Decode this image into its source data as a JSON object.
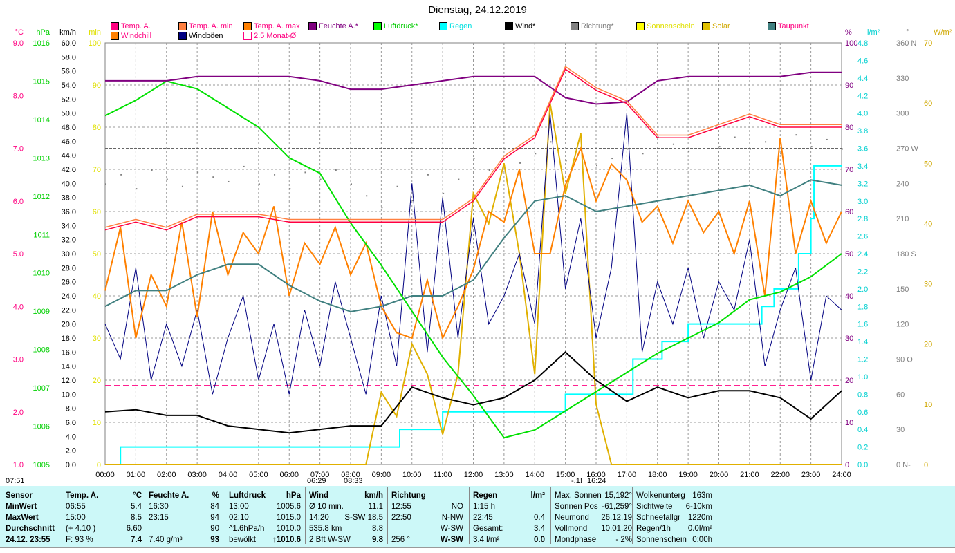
{
  "title": "Dienstag, 24.12.2019",
  "legend": [
    {
      "label": "Temp. A.",
      "color": "#ff0080",
      "text": "#ff0080"
    },
    {
      "label": "Temp. A. min",
      "color": "#ff8040",
      "text": "#ff0080"
    },
    {
      "label": "Temp. A. max",
      "color": "#ff8000",
      "text": "#ff0080"
    },
    {
      "label": "Feuchte A.*",
      "color": "#800080",
      "text": "#800080"
    },
    {
      "label": "Luftdruck*",
      "color": "#00ff00",
      "text": "#00cc00"
    },
    {
      "label": "Regen",
      "color": "#00ffff",
      "text": "#00e0e0"
    },
    {
      "label": "Wind*",
      "color": "#000000",
      "text": "#000000"
    },
    {
      "label": "Richtung*",
      "color": "#808080",
      "text": "#808080"
    },
    {
      "label": "Sonnenschein",
      "color": "#ffff00",
      "text": "#e0e000"
    },
    {
      "label": "Solar",
      "color": "#e0c000",
      "text": "#d0a800"
    },
    {
      "label": "Taupunkt",
      "color": "#408080",
      "text": "#ff0080"
    },
    {
      "label": "Windchill",
      "color": "#ff8000",
      "text": "#ff0080"
    },
    {
      "label": "Windböen",
      "color": "#000080",
      "text": "#000000"
    },
    {
      "label": "2.5 Monat-Ø",
      "color": "#ff0080",
      "text": "#ff0080"
    }
  ],
  "chart_data": {
    "type": "line",
    "title": "Dienstag, 24.12.2019",
    "x_ticks": [
      "00:00",
      "01:00",
      "02:00",
      "03:00",
      "04:00",
      "05:00",
      "06:00",
      "07:00",
      "08:00",
      "09:00",
      "10:00",
      "11:00",
      "12:00",
      "13:00",
      "14:00",
      "15:00",
      "16:00",
      "17:00",
      "18:00",
      "19:00",
      "20:00",
      "21:00",
      "22:00",
      "23:00",
      "24:00"
    ],
    "axes": {
      "temp": {
        "unit": "°C",
        "range": [
          1.0,
          9.0
        ],
        "ticks": [
          "9.0",
          "8.0",
          "7.0",
          "6.0",
          "5.0",
          "4.0",
          "3.0",
          "2.0",
          "1.0"
        ]
      },
      "pressure": {
        "unit": "hPa",
        "range": [
          1005,
          1016
        ],
        "ticks": [
          "1016",
          "1015",
          "1014",
          "1013",
          "1012",
          "1011",
          "1010",
          "1009",
          "1008",
          "1007",
          "1006",
          "1005"
        ]
      },
      "wind": {
        "unit": "km/h",
        "range": [
          0,
          60
        ],
        "ticks": [
          "60.0",
          "58.0",
          "56.0",
          "54.0",
          "52.0",
          "50.0",
          "48.0",
          "46.0",
          "44.0",
          "42.0",
          "40.0",
          "38.0",
          "36.0",
          "34.0",
          "32.0",
          "30.0",
          "28.0",
          "26.0",
          "24.0",
          "22.0",
          "20.0",
          "18.0",
          "16.0",
          "14.0",
          "12.0",
          "10.0",
          "8.0",
          "6.0",
          "4.0",
          "2.0",
          "0.0"
        ]
      },
      "sunmin": {
        "unit": "min",
        "range": [
          0,
          100
        ],
        "ticks": [
          "100",
          "90",
          "80",
          "70",
          "60",
          "50",
          "40",
          "30",
          "20",
          "10",
          "0"
        ]
      },
      "humidity": {
        "unit": "%",
        "range": [
          0,
          100
        ],
        "ticks": [
          "100",
          "90",
          "80",
          "70",
          "60",
          "50",
          "40",
          "30",
          "20",
          "10",
          "0"
        ]
      },
      "rain": {
        "unit": "l/m²",
        "range": [
          0,
          4.8
        ],
        "ticks": [
          "4.8",
          "4.6",
          "4.4",
          "4.2",
          "4.0",
          "3.8",
          "3.6",
          "3.4",
          "3.2",
          "3.0",
          "2.8",
          "2.6",
          "2.4",
          "2.2",
          "2.0",
          "1.8",
          "1.6",
          "1.4",
          "1.2",
          "1.0",
          "0.8",
          "0.6",
          "0.4",
          "0.2",
          "0.0"
        ]
      },
      "direction": {
        "unit": "°",
        "range": [
          0,
          360
        ],
        "ticks": [
          "360 N",
          "330",
          "300",
          "270 W",
          "240",
          "210",
          "180 S",
          "150",
          "120",
          "90 O",
          "60",
          "30",
          "0 N-"
        ]
      },
      "solar": {
        "unit": "W/m²",
        "range": [
          0,
          70
        ],
        "ticks": [
          "70",
          "60",
          "50",
          "40",
          "30",
          "20",
          "10",
          "0"
        ]
      }
    },
    "series_hourly": {
      "temp": [
        5.45,
        5.6,
        5.45,
        5.7,
        5.7,
        5.7,
        5.6,
        5.6,
        5.6,
        5.6,
        5.6,
        5.6,
        6.0,
        6.8,
        7.2,
        8.5,
        8.1,
        7.85,
        7.2,
        7.2,
        7.4,
        7.6,
        7.4,
        7.4,
        7.4
      ],
      "humidity": [
        91,
        91,
        91,
        92,
        92,
        92,
        92,
        91,
        89,
        89,
        90,
        91,
        92,
        92,
        92,
        87,
        85.5,
        86,
        91,
        92,
        92,
        92,
        92,
        93,
        93
      ],
      "pressure": [
        1014.1,
        1014.5,
        1015.0,
        1014.8,
        1014.3,
        1013.8,
        1013.0,
        1012.6,
        1011.3,
        1010.2,
        1009.0,
        1007.8,
        1006.8,
        1005.7,
        1005.9,
        1006.4,
        1006.9,
        1007.4,
        1007.9,
        1008.3,
        1008.7,
        1009.3,
        1009.5,
        1009.9,
        1010.5
      ],
      "dewpoint": [
        4.0,
        4.3,
        4.3,
        4.6,
        4.8,
        4.8,
        4.4,
        4.1,
        3.9,
        4.0,
        4.2,
        4.2,
        4.5,
        5.3,
        6.0,
        6.1,
        5.8,
        5.9,
        6.0,
        6.1,
        6.2,
        6.3,
        6.1,
        6.4,
        6.3
      ],
      "wind": [
        7.5,
        7.8,
        7.0,
        7.0,
        5.5,
        5.0,
        4.5,
        5.0,
        5.5,
        5.5,
        11,
        9.5,
        8.5,
        9.5,
        12,
        16,
        12,
        9,
        11,
        9.5,
        10.5,
        10.5,
        9.5,
        6.5,
        10.5
      ]
    },
    "series_halfhourly": {
      "gusts": [
        20,
        15,
        28,
        12,
        20,
        14,
        22,
        10,
        18,
        24,
        12,
        20,
        10,
        22,
        14,
        26,
        18,
        10,
        24,
        14,
        40,
        16,
        38,
        18,
        35,
        20,
        24,
        30,
        20,
        50,
        25,
        35,
        18,
        28,
        50,
        16,
        26,
        20,
        28,
        18,
        26,
        22,
        32,
        14,
        22,
        28,
        12,
        24,
        22
      ],
      "windchill": [
        4.3,
        5.5,
        3.4,
        4.6,
        4.0,
        5.6,
        3.8,
        5.8,
        4.6,
        5.4,
        5.0,
        5.9,
        4.2,
        5.2,
        4.8,
        5.5,
        4.6,
        5.2,
        4.0,
        3.5,
        3.4,
        4.5,
        3.4,
        4.0,
        4.7,
        5.8,
        5.6,
        6.6,
        5.0,
        5.0,
        6.3,
        7.0,
        6.0,
        6.7,
        6.4,
        5.6,
        5.9,
        5.2,
        6.0,
        5.4,
        5.8,
        5.0,
        6.0,
        4.2,
        7.2,
        5.0,
        6.0,
        5.2,
        5.8
      ],
      "solar": [
        0,
        0,
        0,
        0,
        0,
        0,
        0,
        0,
        0,
        0,
        0,
        0,
        0,
        0,
        0,
        0,
        0,
        0,
        12,
        8,
        20,
        15,
        5,
        15,
        45,
        40,
        50,
        35,
        15,
        60,
        45,
        55,
        10,
        0,
        0,
        0,
        0,
        0,
        0,
        0,
        0,
        0,
        0,
        0,
        0,
        0,
        0,
        0,
        0
      ],
      "direction": [
        240,
        248,
        236,
        252,
        244,
        238,
        250,
        246,
        242,
        255,
        240,
        248,
        236,
        250,
        244,
        252,
        240,
        230,
        220,
        238,
        226,
        248,
        232,
        244,
        262,
        252,
        270,
        258,
        266,
        276,
        260,
        272,
        256,
        262,
        270,
        266,
        280,
        274,
        268,
        284,
        272,
        280,
        270,
        276,
        266,
        282,
        272,
        278,
        270
      ]
    },
    "rain_steps": [
      [
        0,
        0
      ],
      [
        0.5,
        0.2
      ],
      [
        9.6,
        0.4
      ],
      [
        11.0,
        0.6
      ],
      [
        15.0,
        0.8
      ],
      [
        17.2,
        1.2
      ],
      [
        18.15,
        1.4
      ],
      [
        19.0,
        1.6
      ],
      [
        21.4,
        1.8
      ],
      [
        21.8,
        2.0
      ],
      [
        22.6,
        2.4
      ],
      [
        23.0,
        2.8
      ],
      [
        23.1,
        3.4
      ],
      [
        24,
        3.4
      ]
    ],
    "monthly_avg_temp": 2.5,
    "ref_direction": 270
  },
  "bottom_axis": {
    "sunrise_left": "07:51",
    "dawn": "06:29",
    "sunrise": "08:33",
    "moon": "-.1!",
    "sunset": "16:24"
  },
  "panel": {
    "sensor": {
      "h": "Sensor",
      "min": "MinWert",
      "max": "MaxWert",
      "avg": "Durchschnitt",
      "now": "24.12. 23:55"
    },
    "temp": {
      "h": "Temp. A.",
      "u": "°C",
      "r": [
        [
          "06:55",
          "5.4"
        ],
        [
          "15:00",
          "8.5"
        ],
        [
          "(+ 4.10 )",
          "6.60"
        ],
        [
          "F: 93 %",
          "7.4"
        ]
      ]
    },
    "hum": {
      "h": "Feuchte A.",
      "u": "%",
      "r": [
        [
          "16:30",
          "84"
        ],
        [
          "23:15",
          "94"
        ],
        [
          "",
          "90"
        ],
        [
          "7.40 g/m³",
          "93"
        ]
      ]
    },
    "press": {
      "h": "Luftdruck",
      "u": "hPa",
      "r": [
        [
          "13:00",
          "1005.6"
        ],
        [
          "02:10",
          "1015.0"
        ],
        [
          "^1.6hPa/h",
          "1010.0"
        ],
        [
          "bewölkt",
          "↑1010.6"
        ]
      ]
    },
    "wind": {
      "h": "Wind",
      "u": "km/h",
      "r": [
        [
          "Ø 10 min.",
          "11.1"
        ],
        [
          "14:20",
          "S-SW 18.5"
        ],
        [
          "535.8 km",
          "8.8"
        ],
        [
          "2 Bft W-SW",
          "9.8"
        ]
      ]
    },
    "dir": {
      "h": "Richtung",
      "u": "",
      "r": [
        [
          "12:55",
          "NO"
        ],
        [
          "22:50",
          "N-NW"
        ],
        [
          "",
          "W-SW"
        ],
        [
          "256 °",
          "W-SW"
        ]
      ]
    },
    "rain": {
      "h": "Regen",
      "u": "l/m²",
      "r": [
        [
          "1:15 h",
          ""
        ],
        [
          "22:45",
          "0.4"
        ],
        [
          "Gesamt:",
          "3.4"
        ],
        [
          "3.4 l/m²",
          "0.0"
        ]
      ]
    },
    "astro": [
      [
        "Max. Sonnen",
        "15,192°"
      ],
      [
        "Sonnen Pos",
        "-61,259°"
      ],
      [
        "Neumond",
        "26.12.19"
      ],
      [
        "Vollmond",
        "10.01.20"
      ],
      [
        "Mondphase",
        "- 2%"
      ]
    ],
    "misc": [
      [
        "Wolkenunterg",
        "163m"
      ],
      [
        "Sichtweite",
        "6-10km"
      ],
      [
        "Schneefallgr",
        "1220m"
      ],
      [
        "Regen/1h",
        "0.0l/m²"
      ],
      [
        "Sonnenschein",
        "0:00h"
      ]
    ]
  }
}
